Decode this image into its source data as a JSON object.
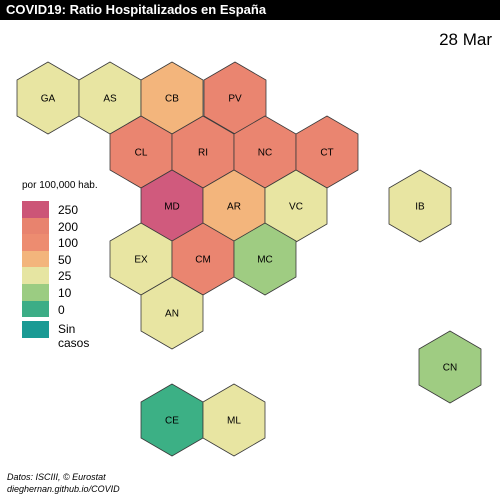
{
  "title": "COVID19: Ratio Hospitalizados en España",
  "date": "28 Mar",
  "legend": {
    "title": "por 100,000 hab.",
    "items": [
      {
        "label": "250",
        "color": "#cc5577"
      },
      {
        "label": "200",
        "color": "#e8836e"
      },
      {
        "label": "100",
        "color": "#ed8c70"
      },
      {
        "label": "50",
        "color": "#f3b57c"
      },
      {
        "label": "25",
        "color": "#e6e5a2"
      },
      {
        "label": "10",
        "color": "#9bcc82"
      },
      {
        "label": "0",
        "color": "#3cad86"
      }
    ],
    "no_cases": {
      "label": "Sin casos",
      "color": "#1a9a94"
    }
  },
  "regions": [
    {
      "code": "GA",
      "color": "#e8e5a2"
    },
    {
      "code": "AS",
      "color": "#e8e5a2"
    },
    {
      "code": "CB",
      "color": "#f3b57c"
    },
    {
      "code": "PV",
      "color": "#ea8570"
    },
    {
      "code": "CL",
      "color": "#ea8570"
    },
    {
      "code": "RI",
      "color": "#ea8570"
    },
    {
      "code": "NC",
      "color": "#ea8570"
    },
    {
      "code": "CT",
      "color": "#ea8570"
    },
    {
      "code": "MD",
      "color": "#d05a7d"
    },
    {
      "code": "AR",
      "color": "#f3b57c"
    },
    {
      "code": "VC",
      "color": "#e8e5a2"
    },
    {
      "code": "IB",
      "color": "#e8e5a2"
    },
    {
      "code": "EX",
      "color": "#e8e5a2"
    },
    {
      "code": "CM",
      "color": "#ea8570"
    },
    {
      "code": "MC",
      "color": "#9fcc82"
    },
    {
      "code": "AN",
      "color": "#e8e5a2"
    },
    {
      "code": "CN",
      "color": "#9fcc82"
    },
    {
      "code": "CE",
      "color": "#3cb085"
    },
    {
      "code": "ML",
      "color": "#e8e5a2"
    }
  ],
  "source": {
    "line1": "Datos: ISCIII, © Eurostat",
    "line2": "dieghernan.github.io/COVID"
  }
}
